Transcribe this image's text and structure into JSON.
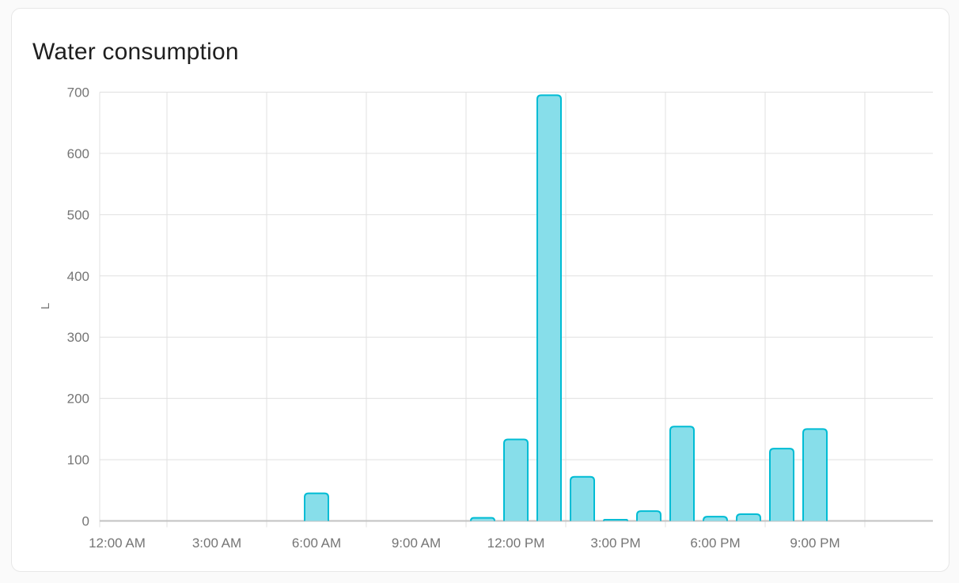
{
  "card": {
    "title": "Water consumption"
  },
  "colors": {
    "page_bg": "#FAFAFA",
    "card_bg": "#FFFFFF",
    "card_border": "#E7E7E7",
    "title_color": "#1F1F1F",
    "bar_fill": "#87DEEA",
    "bar_stroke": "#00BCD4",
    "grid_line": "#E0E0E0",
    "axis_line": "#C2C2C2",
    "tick_label": "#757575"
  },
  "chart_data": {
    "type": "bar",
    "title": "Water consumption",
    "xlabel": "",
    "ylabel": "L",
    "ylim": [
      0,
      700
    ],
    "ytick_step": 100,
    "yticks": [
      0,
      100,
      200,
      300,
      400,
      500,
      600,
      700
    ],
    "grid": true,
    "legend": "none",
    "xtick_labels": [
      "12:00 AM",
      "3:00 AM",
      "6:00 AM",
      "9:00 AM",
      "12:00 PM",
      "3:00 PM",
      "6:00 PM",
      "9:00 PM"
    ],
    "categories": [
      "12:00 AM",
      "1:00 AM",
      "2:00 AM",
      "3:00 AM",
      "4:00 AM",
      "5:00 AM",
      "6:00 AM",
      "7:00 AM",
      "8:00 AM",
      "9:00 AM",
      "10:00 AM",
      "11:00 AM",
      "12:00 PM",
      "1:00 PM",
      "2:00 PM",
      "3:00 PM",
      "4:00 PM",
      "5:00 PM",
      "6:00 PM",
      "7:00 PM",
      "8:00 PM",
      "9:00 PM",
      "10:00 PM",
      "11:00 PM"
    ],
    "values": [
      0,
      0,
      0,
      0,
      0,
      0,
      45,
      0,
      0,
      0,
      0,
      5,
      133,
      695,
      72,
      2,
      16,
      154,
      7,
      11,
      118,
      150,
      0,
      0
    ]
  }
}
